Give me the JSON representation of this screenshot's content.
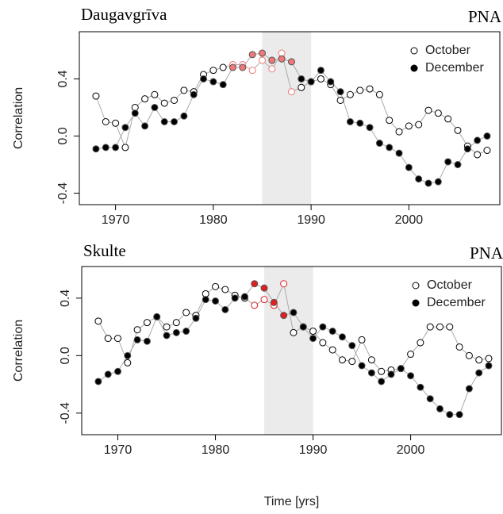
{
  "chart_data": [
    {
      "type": "line",
      "title": "Daugavgrīva",
      "annotation": "PNA",
      "ylabel": "Correlation",
      "xlim": [
        1966.3,
        2009.3
      ],
      "xticks": [
        1970,
        1980,
        1990,
        2000
      ],
      "ylim": [
        -0.48,
        0.73
      ],
      "yticks": [
        {
          "value": -0.4,
          "label": "-0.4"
        },
        {
          "value": 0,
          "label": "0.0"
        },
        0.4
      ],
      "shade": [
        1985,
        1990
      ],
      "highlight_range": [
        1982,
        1988
      ],
      "highlight_color": "#f07878",
      "legend": "top-right",
      "x": [
        1968,
        1969,
        1970,
        1971,
        1972,
        1973,
        1974,
        1975,
        1976,
        1977,
        1978,
        1979,
        1980,
        1981,
        1982,
        1983,
        1984,
        1985,
        1986,
        1987,
        1988,
        1989,
        1990,
        1991,
        1992,
        1993,
        1994,
        1995,
        1996,
        1997,
        1998,
        1999,
        2000,
        2001,
        2002,
        2003,
        2004,
        2005,
        2006,
        2007,
        2008
      ],
      "series": [
        {
          "name": "October",
          "marker": "open",
          "color": "#000000",
          "values": [
            0.28,
            0.1,
            0.09,
            -0.08,
            0.2,
            0.26,
            0.29,
            0.23,
            0.25,
            0.32,
            0.31,
            0.43,
            0.46,
            0.48,
            0.5,
            0.5,
            0.46,
            0.53,
            0.47,
            0.58,
            0.31,
            0.34,
            0.38,
            0.4,
            0.36,
            0.25,
            0.29,
            0.32,
            0.33,
            0.29,
            0.11,
            0.03,
            0.07,
            0.08,
            0.18,
            0.16,
            0.12,
            0.04,
            -0.07,
            -0.13,
            -0.1
          ]
        },
        {
          "name": "December",
          "marker": "filled",
          "color": "#000000",
          "values": [
            -0.09,
            -0.08,
            -0.08,
            0.06,
            0.16,
            0.07,
            0.2,
            0.1,
            0.1,
            0.14,
            0.29,
            0.4,
            0.38,
            0.36,
            0.48,
            0.48,
            0.57,
            0.58,
            0.53,
            0.54,
            0.52,
            0.4,
            0.38,
            0.46,
            0.38,
            0.31,
            0.1,
            0.09,
            0.06,
            -0.05,
            -0.08,
            -0.12,
            -0.22,
            -0.3,
            -0.33,
            -0.32,
            -0.18,
            -0.2,
            -0.09,
            -0.03,
            0.0
          ]
        }
      ]
    },
    {
      "type": "line",
      "title": "Skulte",
      "annotation": "PNA",
      "ylabel": "Correlation",
      "xlabel": "Time [yrs]",
      "xlim": [
        1966.3,
        2009.3
      ],
      "xticks": [
        1970,
        1980,
        1990,
        2000
      ],
      "ylim": [
        -0.55,
        0.62
      ],
      "yticks": [
        {
          "value": -0.4,
          "label": "-0.4"
        },
        {
          "value": 0,
          "label": "0.0"
        },
        0.4
      ],
      "shade": [
        1985,
        1990
      ],
      "highlight_range": [
        1984,
        1987
      ],
      "highlight_color": "#e02020",
      "legend": "top-right",
      "x": [
        1968,
        1969,
        1970,
        1971,
        1972,
        1973,
        1974,
        1975,
        1976,
        1977,
        1978,
        1979,
        1980,
        1981,
        1982,
        1983,
        1984,
        1985,
        1986,
        1987,
        1988,
        1989,
        1990,
        1991,
        1992,
        1993,
        1994,
        1995,
        1996,
        1997,
        1998,
        1999,
        2000,
        2001,
        2002,
        2003,
        2004,
        2005,
        2006,
        2007,
        2008
      ],
      "series": [
        {
          "name": "October",
          "marker": "open",
          "color": "#000000",
          "values": [
            0.24,
            0.12,
            0.12,
            -0.05,
            0.18,
            0.23,
            0.27,
            0.2,
            0.23,
            0.3,
            0.28,
            0.43,
            0.48,
            0.46,
            0.42,
            0.4,
            0.35,
            0.39,
            0.35,
            0.5,
            0.16,
            0.2,
            0.17,
            0.09,
            0.04,
            -0.03,
            -0.04,
            0.11,
            -0.03,
            -0.11,
            -0.1,
            -0.09,
            0.01,
            0.09,
            0.2,
            0.2,
            0.2,
            0.06,
            0.0,
            -0.03,
            -0.02
          ]
        },
        {
          "name": "December",
          "marker": "filled",
          "color": "#000000",
          "values": [
            -0.18,
            -0.13,
            -0.11,
            0.0,
            0.11,
            0.1,
            0.27,
            0.14,
            0.16,
            0.17,
            0.26,
            0.39,
            0.38,
            0.32,
            0.4,
            0.41,
            0.5,
            0.47,
            0.37,
            0.28,
            0.3,
            0.2,
            0.12,
            0.2,
            0.17,
            0.13,
            0.07,
            -0.07,
            -0.12,
            -0.18,
            -0.13,
            -0.09,
            -0.14,
            -0.22,
            -0.3,
            -0.37,
            -0.41,
            -0.41,
            -0.23,
            -0.12,
            -0.07
          ]
        }
      ]
    }
  ]
}
